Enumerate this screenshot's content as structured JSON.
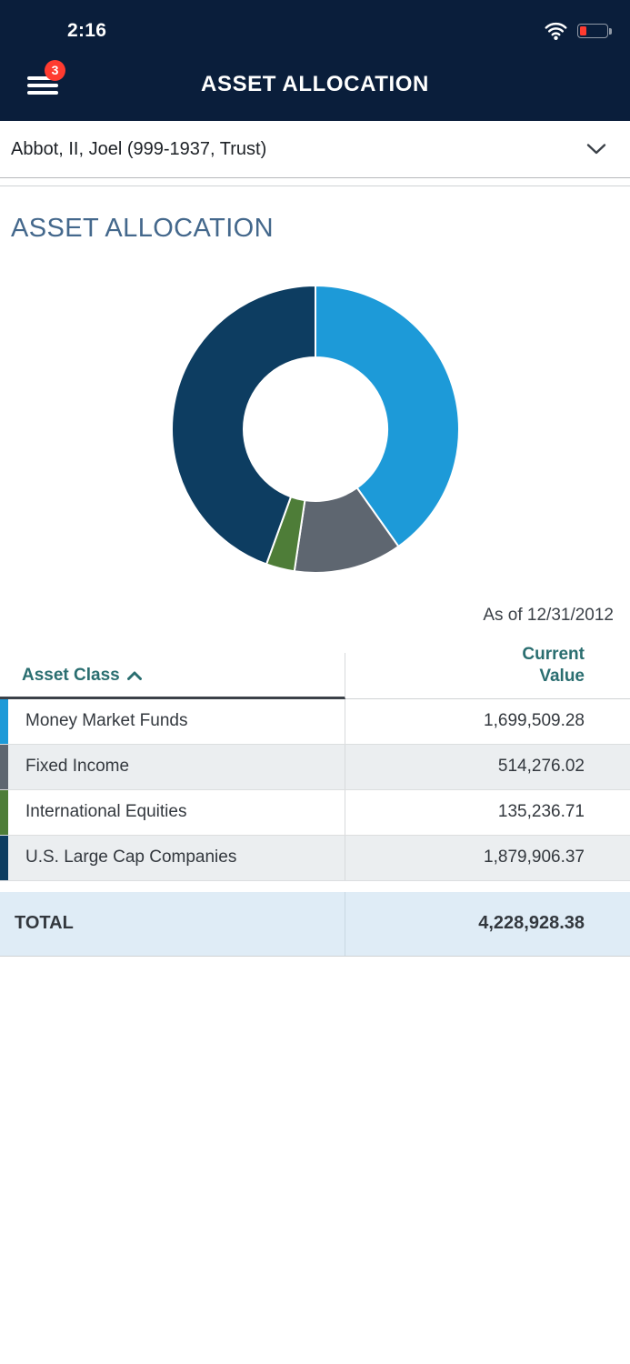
{
  "status_bar": {
    "time": "2:16",
    "wifi_icon": "wifi",
    "battery_icon": "battery-low-red"
  },
  "nav": {
    "title": "ASSET ALLOCATION",
    "menu_icon": "hamburger",
    "menu_badge": "3"
  },
  "account_selector": {
    "label": "Abbot, II, Joel (999-1937, Trust)",
    "chevron_icon": "chevron-down"
  },
  "page": {
    "heading": "ASSET ALLOCATION",
    "as_of": "As of 12/31/2012"
  },
  "chart_data": {
    "type": "pie",
    "title": "Asset Allocation",
    "categories": [
      "Money Market Funds",
      "Fixed Income",
      "International Equities",
      "U.S. Large Cap Companies"
    ],
    "values": [
      1699509.28,
      514276.02,
      135236.71,
      1879906.37
    ],
    "colors": [
      "#1d9ad8",
      "#5e6670",
      "#4e7d38",
      "#0d3d61"
    ],
    "total": 4228928.38,
    "donut_hole_ratio": 0.5,
    "start_angle_deg": 0,
    "direction": "clockwise",
    "legend_position": "none"
  },
  "table": {
    "header": {
      "asset_class_label": "Asset Class",
      "sort_direction": "asc",
      "value_label_line1": "Current",
      "value_label_line2": "Value"
    },
    "rows": [
      {
        "asset_class": "Money Market Funds",
        "current_value": "1,699,509.28",
        "color": "#1d9ad8"
      },
      {
        "asset_class": "Fixed Income",
        "current_value": "514,276.02",
        "color": "#5e6670"
      },
      {
        "asset_class": "International Equities",
        "current_value": "135,236.71",
        "color": "#4e7d38"
      },
      {
        "asset_class": "U.S. Large Cap Companies",
        "current_value": "1,879,906.37",
        "color": "#0d3d61"
      }
    ],
    "total_label": "TOTAL",
    "total_value": "4,228,928.38"
  },
  "colors": {
    "header_bg": "#0a1e3b",
    "badge_red": "#ff3b30",
    "heading_blue": "#44688c",
    "table_header_teal": "#2a6e70",
    "row_alt_bg": "#ebeef0",
    "total_row_bg": "#dfecf6",
    "text_dark": "#33383e"
  }
}
